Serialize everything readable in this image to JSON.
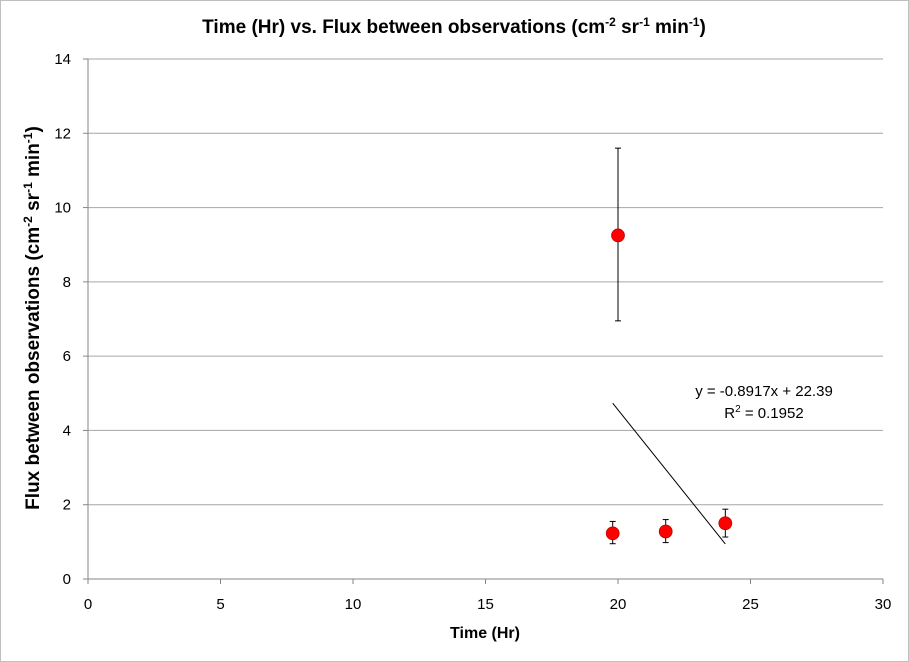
{
  "chart_data": {
    "type": "scatter",
    "title": {
      "main": "Time (Hr) vs. Flux between observations (cm",
      "sup1": "-2",
      "mid1": " sr",
      "sup2": "-1",
      "mid2": " min",
      "sup3": "-1",
      "end": ")"
    },
    "xlabel": "Time (Hr)",
    "ylabel": {
      "main": "Flux between observations (cm",
      "sup1": "-2",
      "mid1": " sr",
      "sup2": "-1",
      "mid2": " min",
      "sup3": "-1",
      "end": ")"
    },
    "xlim": [
      0,
      30
    ],
    "ylim": [
      0,
      14
    ],
    "xticks": [
      0,
      5,
      10,
      15,
      20,
      25,
      30
    ],
    "xtick_labels": [
      "0",
      "5",
      "10",
      "15",
      "20",
      "25",
      "30"
    ],
    "yticks": [
      0,
      2,
      4,
      6,
      8,
      10,
      12,
      14
    ],
    "ytick_labels": [
      "0",
      "2",
      "4",
      "6",
      "8",
      "10",
      "12",
      "14"
    ],
    "grid": {
      "horizontal": true,
      "vertical": false
    },
    "legend": "none",
    "points": [
      {
        "x": 19.8,
        "y": 1.23,
        "err_low": 0.95,
        "err_high": 1.55
      },
      {
        "x": 20.0,
        "y": 9.25,
        "err_low": 6.95,
        "err_high": 11.6
      },
      {
        "x": 21.8,
        "y": 1.28,
        "err_low": 0.98,
        "err_high": 1.6
      },
      {
        "x": 24.05,
        "y": 1.5,
        "err_low": 1.13,
        "err_high": 1.88
      }
    ],
    "trendline": {
      "slope": -0.8917,
      "intercept": 22.39,
      "x_start": 19.8,
      "x_end": 24.05,
      "equation_text": "y = -0.8917x + 22.39",
      "r2_label": "R",
      "r2_sup": "2",
      "r2_value": " = 0.1952"
    },
    "colors": {
      "marker": "#ff0000",
      "marker_edge": "#c00000",
      "gridline": "#a6a6a6",
      "axis": "#868686",
      "text": "#000000",
      "errorbar": "#000000",
      "trendline": "#000000"
    }
  }
}
